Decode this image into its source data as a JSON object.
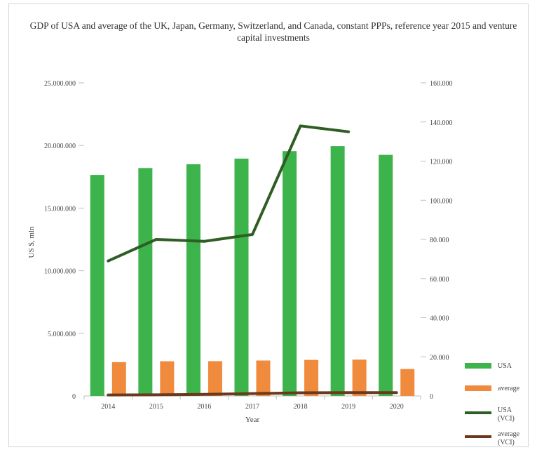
{
  "chart_data": {
    "type": "bar",
    "title": "GDP of USA and average of the UK, Japan, Germany, Switzerland, and Canada, constant PPPs, reference year 2015 and venture capital investments",
    "xlabel": "Year",
    "ylabel": "US $, mln",
    "categories": [
      "2014",
      "2015",
      "2016",
      "2017",
      "2018",
      "2019",
      "2020"
    ],
    "y_left": {
      "ylim": [
        0,
        25000000
      ],
      "ticks": [
        0,
        5000000,
        10000000,
        15000000,
        20000000,
        25000000
      ],
      "tick_labels": [
        "0",
        "5.000.000",
        "10.000.000",
        "15.000.000",
        "20.000.000",
        "25.000.000"
      ]
    },
    "y_right": {
      "ylim": [
        0,
        160000
      ],
      "ticks": [
        0,
        20000,
        40000,
        60000,
        80000,
        100000,
        120000,
        140000,
        160000
      ],
      "tick_labels": [
        "0",
        "20.000",
        "40.000",
        "60.000",
        "80.000",
        "100.000",
        "120.000",
        "140.000",
        "160.000"
      ]
    },
    "series": [
      {
        "name": "USA",
        "kind": "bar",
        "axis": "left",
        "color": "#3cb44b",
        "values": [
          17650000,
          18200000,
          18500000,
          18950000,
          19550000,
          19950000,
          19250000
        ]
      },
      {
        "name": "average",
        "kind": "bar",
        "axis": "left",
        "color": "#f08a3c",
        "values": [
          2700000,
          2770000,
          2780000,
          2830000,
          2880000,
          2900000,
          2150000
        ]
      },
      {
        "name": "USA (VCI)",
        "kind": "line",
        "axis": "right",
        "color": "#2e5e24",
        "values": [
          69000,
          80000,
          79000,
          82500,
          138000,
          135000,
          null
        ]
      },
      {
        "name": "average (VCI)",
        "kind": "line",
        "axis": "right",
        "color": "#6b3a1e",
        "values": [
          500,
          600,
          800,
          1200,
          1600,
          1700,
          1700
        ]
      }
    ],
    "grid": false,
    "legend_position": "right"
  }
}
